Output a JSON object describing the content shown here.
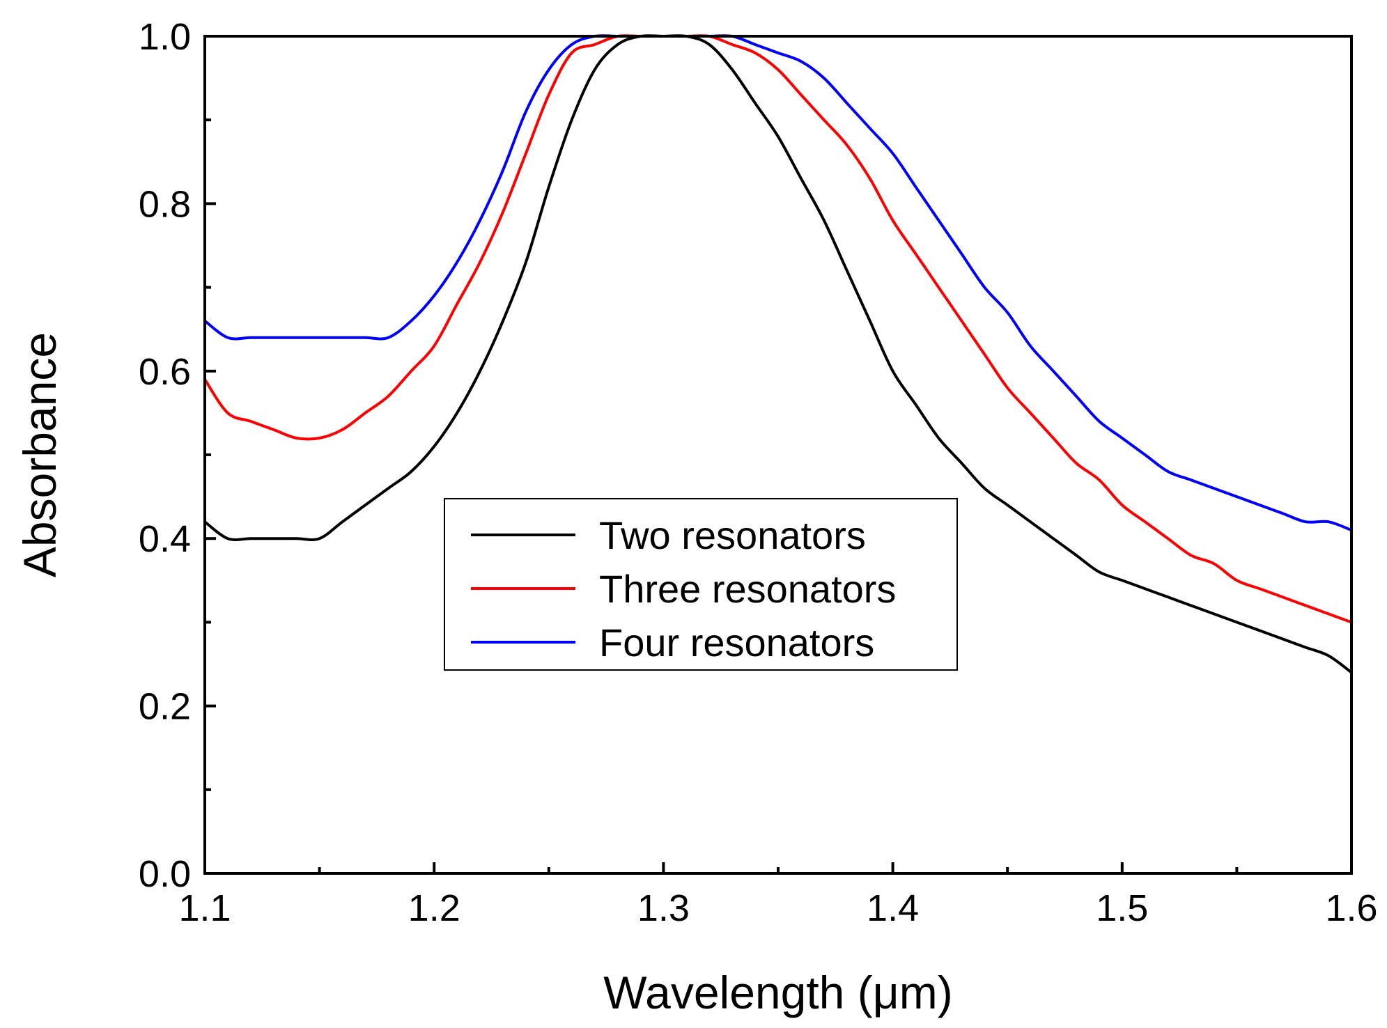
{
  "chart_data": {
    "type": "line",
    "xlabel": "Wavelength (μm)",
    "ylabel": "Absorbance",
    "xlim": [
      1.1,
      1.6
    ],
    "ylim": [
      0.0,
      1.0
    ],
    "xticks": [
      "1.1",
      "1.2",
      "1.3",
      "1.4",
      "1.5",
      "1.6"
    ],
    "yticks": [
      "0.0",
      "0.2",
      "0.4",
      "0.6",
      "0.8",
      "1.0"
    ],
    "grid": false,
    "legend_position": "center",
    "series": [
      {
        "name": "Two resonators",
        "color": "#000000",
        "x": [
          1.1,
          1.11,
          1.12,
          1.13,
          1.14,
          1.15,
          1.16,
          1.17,
          1.18,
          1.19,
          1.2,
          1.21,
          1.22,
          1.23,
          1.24,
          1.25,
          1.26,
          1.27,
          1.28,
          1.29,
          1.3,
          1.31,
          1.32,
          1.33,
          1.34,
          1.35,
          1.36,
          1.37,
          1.38,
          1.39,
          1.4,
          1.41,
          1.42,
          1.43,
          1.44,
          1.45,
          1.46,
          1.47,
          1.48,
          1.49,
          1.5,
          1.51,
          1.52,
          1.53,
          1.54,
          1.55,
          1.56,
          1.57,
          1.58,
          1.59,
          1.6
        ],
        "y": [
          0.42,
          0.4,
          0.4,
          0.4,
          0.4,
          0.4,
          0.42,
          0.44,
          0.46,
          0.48,
          0.51,
          0.55,
          0.6,
          0.66,
          0.73,
          0.82,
          0.9,
          0.96,
          0.99,
          1.0,
          1.0,
          1.0,
          0.99,
          0.96,
          0.92,
          0.88,
          0.83,
          0.78,
          0.72,
          0.66,
          0.6,
          0.56,
          0.52,
          0.49,
          0.46,
          0.44,
          0.42,
          0.4,
          0.38,
          0.36,
          0.35,
          0.34,
          0.33,
          0.32,
          0.31,
          0.3,
          0.29,
          0.28,
          0.27,
          0.26,
          0.24
        ]
      },
      {
        "name": "Three resonators",
        "color": "#ff0000",
        "x": [
          1.1,
          1.11,
          1.12,
          1.13,
          1.14,
          1.15,
          1.16,
          1.17,
          1.18,
          1.19,
          1.2,
          1.21,
          1.22,
          1.23,
          1.24,
          1.25,
          1.26,
          1.27,
          1.28,
          1.29,
          1.3,
          1.31,
          1.32,
          1.33,
          1.34,
          1.35,
          1.36,
          1.37,
          1.38,
          1.39,
          1.4,
          1.41,
          1.42,
          1.43,
          1.44,
          1.45,
          1.46,
          1.47,
          1.48,
          1.49,
          1.5,
          1.51,
          1.52,
          1.53,
          1.54,
          1.55,
          1.56,
          1.57,
          1.58,
          1.59,
          1.6
        ],
        "y": [
          0.59,
          0.55,
          0.54,
          0.53,
          0.52,
          0.52,
          0.53,
          0.55,
          0.57,
          0.6,
          0.63,
          0.68,
          0.73,
          0.79,
          0.86,
          0.93,
          0.98,
          0.99,
          1.0,
          1.0,
          1.0,
          1.0,
          1.0,
          0.99,
          0.98,
          0.96,
          0.93,
          0.9,
          0.87,
          0.83,
          0.78,
          0.74,
          0.7,
          0.66,
          0.62,
          0.58,
          0.55,
          0.52,
          0.49,
          0.47,
          0.44,
          0.42,
          0.4,
          0.38,
          0.37,
          0.35,
          0.34,
          0.33,
          0.32,
          0.31,
          0.3
        ]
      },
      {
        "name": "Four resonators",
        "color": "#0000ff",
        "x": [
          1.1,
          1.11,
          1.12,
          1.13,
          1.14,
          1.15,
          1.16,
          1.17,
          1.18,
          1.19,
          1.2,
          1.21,
          1.22,
          1.23,
          1.24,
          1.25,
          1.26,
          1.27,
          1.28,
          1.29,
          1.3,
          1.31,
          1.32,
          1.33,
          1.34,
          1.35,
          1.36,
          1.37,
          1.38,
          1.39,
          1.4,
          1.41,
          1.42,
          1.43,
          1.44,
          1.45,
          1.46,
          1.47,
          1.48,
          1.49,
          1.5,
          1.51,
          1.52,
          1.53,
          1.54,
          1.55,
          1.56,
          1.57,
          1.58,
          1.59,
          1.6
        ],
        "y": [
          0.66,
          0.64,
          0.64,
          0.64,
          0.64,
          0.64,
          0.64,
          0.64,
          0.64,
          0.66,
          0.69,
          0.73,
          0.78,
          0.84,
          0.91,
          0.96,
          0.99,
          1.0,
          1.0,
          1.0,
          1.0,
          1.0,
          1.0,
          1.0,
          0.99,
          0.98,
          0.97,
          0.95,
          0.92,
          0.89,
          0.86,
          0.82,
          0.78,
          0.74,
          0.7,
          0.67,
          0.63,
          0.6,
          0.57,
          0.54,
          0.52,
          0.5,
          0.48,
          0.47,
          0.46,
          0.45,
          0.44,
          0.43,
          0.42,
          0.42,
          0.41
        ]
      }
    ]
  }
}
